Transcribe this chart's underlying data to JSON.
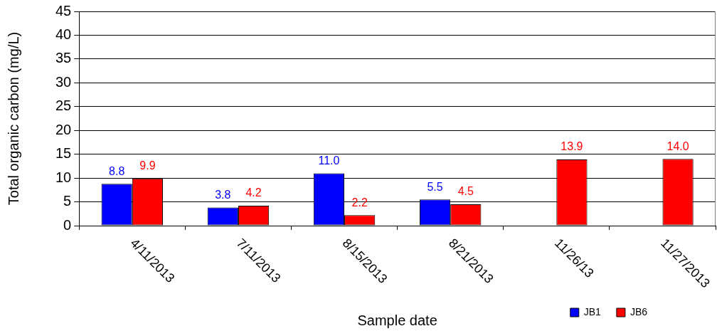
{
  "chart_data": {
    "type": "bar",
    "xlabel": "Sample date",
    "ylabel": "Total organic carbon (mg/L)",
    "categories": [
      "4/11/2013",
      "7/11/2013",
      "8/15/2013",
      "8/21/2013",
      "11/26/13",
      "11/27/2013"
    ],
    "series": [
      {
        "name": "JB1",
        "color": "#0000ff",
        "values": [
          8.8,
          3.8,
          11.0,
          5.5,
          null,
          null
        ],
        "value_labels": [
          "8.8",
          "3.8",
          "11.0",
          "5.5",
          null,
          null
        ]
      },
      {
        "name": "JB6",
        "color": "#ff0000",
        "values": [
          9.9,
          4.2,
          2.2,
          4.5,
          13.9,
          14.0
        ],
        "value_labels": [
          "9.9",
          "4.2",
          "2.2",
          "4.5",
          "13.9",
          "14.0"
        ]
      }
    ],
    "ylim": [
      0,
      45
    ],
    "yticks": [
      0,
      5,
      10,
      15,
      20,
      25,
      30,
      35,
      40,
      45
    ],
    "grid": "y",
    "legend": "bottom right"
  }
}
